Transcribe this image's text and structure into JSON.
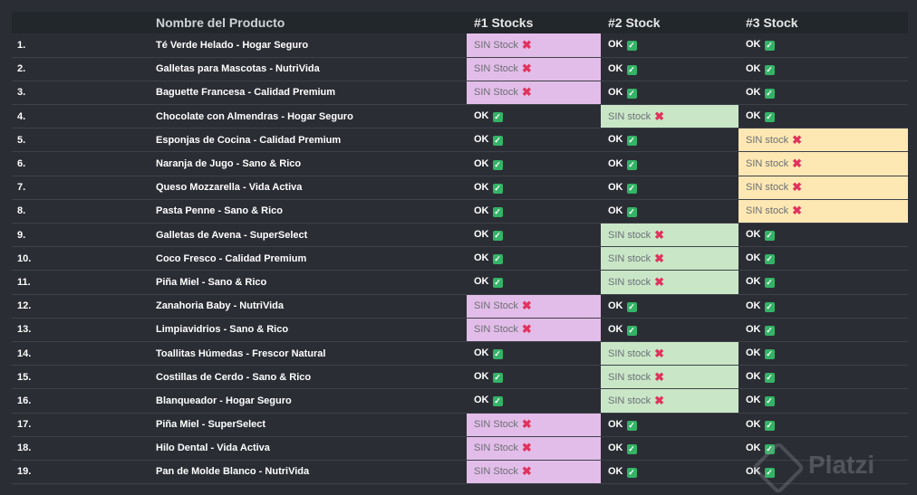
{
  "table": {
    "headers": {
      "index": "",
      "name": "Nombre del Producto",
      "stock1": "#1 Stocks",
      "stock2": "#2 Stock",
      "stock3": "#3 Stock"
    },
    "rows": [
      {
        "index": "1.",
        "name": "Té Verde Helado - Hogar Seguro",
        "s1": "SIN Stock",
        "s2": "OK",
        "s3": "OK"
      },
      {
        "index": "2.",
        "name": "Galletas para Mascotas - NutriVida",
        "s1": "SIN Stock",
        "s2": "OK",
        "s3": "OK"
      },
      {
        "index": "3.",
        "name": "Baguette Francesa - Calidad Premium",
        "s1": "SIN Stock",
        "s2": "OK",
        "s3": "OK"
      },
      {
        "index": "4.",
        "name": "Chocolate con Almendras - Hogar Seguro",
        "s1": "OK",
        "s2": "SIN stock",
        "s3": "OK"
      },
      {
        "index": "5.",
        "name": "Esponjas de Cocina - Calidad Premium",
        "s1": "OK",
        "s2": "OK",
        "s3": "SIN stock"
      },
      {
        "index": "6.",
        "name": "Naranja de Jugo - Sano & Rico",
        "s1": "OK",
        "s2": "OK",
        "s3": "SIN stock"
      },
      {
        "index": "7.",
        "name": "Queso Mozzarella - Vida Activa",
        "s1": "OK",
        "s2": "OK",
        "s3": "SIN stock"
      },
      {
        "index": "8.",
        "name": "Pasta Penne - Sano & Rico",
        "s1": "OK",
        "s2": "OK",
        "s3": "SIN stock"
      },
      {
        "index": "9.",
        "name": "Galletas de Avena - SuperSelect",
        "s1": "OK",
        "s2": "SIN stock",
        "s3": "OK"
      },
      {
        "index": "10.",
        "name": "Coco Fresco - Calidad Premium",
        "s1": "OK",
        "s2": "SIN stock",
        "s3": "OK"
      },
      {
        "index": "11.",
        "name": "Piña Miel - Sano & Rico",
        "s1": "OK",
        "s2": "SIN stock",
        "s3": "OK"
      },
      {
        "index": "12.",
        "name": "Zanahoria Baby - NutriVida",
        "s1": "SIN Stock",
        "s2": "OK",
        "s3": "OK"
      },
      {
        "index": "13.",
        "name": "Limpiavidrios - Sano & Rico",
        "s1": "SIN Stock",
        "s2": "OK",
        "s3": "OK"
      },
      {
        "index": "14.",
        "name": "Toallitas Húmedas - Frescor Natural",
        "s1": "OK",
        "s2": "SIN stock",
        "s3": "OK"
      },
      {
        "index": "15.",
        "name": "Costillas de Cerdo - Sano & Rico",
        "s1": "OK",
        "s2": "SIN stock",
        "s3": "OK"
      },
      {
        "index": "16.",
        "name": "Blanqueador - Hogar Seguro",
        "s1": "OK",
        "s2": "SIN stock",
        "s3": "OK"
      },
      {
        "index": "17.",
        "name": "Piña Miel - SuperSelect",
        "s1": "SIN Stock",
        "s2": "OK",
        "s3": "OK"
      },
      {
        "index": "18.",
        "name": "Hilo Dental - Vida Activa",
        "s1": "SIN Stock",
        "s2": "OK",
        "s3": "OK"
      },
      {
        "index": "19.",
        "name": "Pan de Molde Blanco - NutriVida",
        "s1": "SIN Stock",
        "s2": "OK",
        "s3": "OK"
      }
    ]
  },
  "icons": {
    "ok": "check-mark-icon",
    "missing": "cross-mark-icon"
  },
  "colors": {
    "background": "#2b2d34",
    "header_background": "#22272b",
    "stock1_missing": "#e3bde9",
    "stock2_missing": "#c9e7c7",
    "stock3_missing": "#fde8b3",
    "ok_icon": "#34b367",
    "cross_icon": "#e0335e"
  },
  "watermark": {
    "text": "Platzi"
  }
}
